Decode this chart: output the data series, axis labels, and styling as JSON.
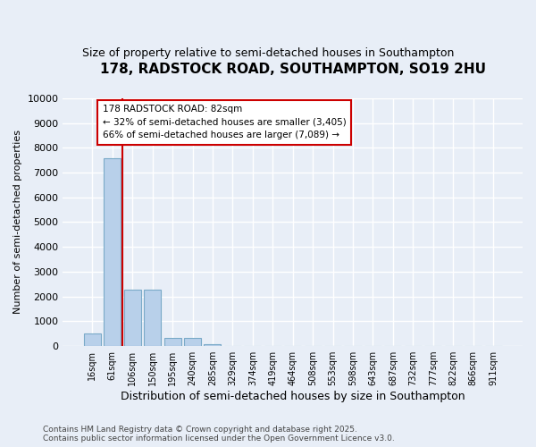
{
  "title": "178, RADSTOCK ROAD, SOUTHAMPTON, SO19 2HU",
  "subtitle": "Size of property relative to semi-detached houses in Southampton",
  "xlabel": "Distribution of semi-detached houses by size in Southampton",
  "ylabel": "Number of semi-detached properties",
  "categories": [
    "16sqm",
    "61sqm",
    "106sqm",
    "150sqm",
    "195sqm",
    "240sqm",
    "285sqm",
    "329sqm",
    "374sqm",
    "419sqm",
    "464sqm",
    "508sqm",
    "553sqm",
    "598sqm",
    "643sqm",
    "687sqm",
    "732sqm",
    "777sqm",
    "822sqm",
    "866sqm",
    "911sqm"
  ],
  "values": [
    520,
    7580,
    2270,
    2270,
    340,
    340,
    75,
    0,
    0,
    0,
    0,
    0,
    0,
    0,
    0,
    0,
    0,
    0,
    0,
    0,
    0
  ],
  "bar_color": "#b8d0ea",
  "bar_edge_color": "#7aaac8",
  "red_line_x": 1.5,
  "annotation_title": "178 RADSTOCK ROAD: 82sqm",
  "annotation_line1": "← 32% of semi-detached houses are smaller (3,405)",
  "annotation_line2": "66% of semi-detached houses are larger (7,089) →",
  "footer_line1": "Contains HM Land Registry data © Crown copyright and database right 2025.",
  "footer_line2": "Contains public sector information licensed under the Open Government Licence v3.0.",
  "ylim": [
    0,
    10000
  ],
  "yticks": [
    0,
    1000,
    2000,
    3000,
    4000,
    5000,
    6000,
    7000,
    8000,
    9000,
    10000
  ],
  "bg_color": "#e8eef7",
  "plot_bg_color": "#e8eef7",
  "grid_color": "#ffffff"
}
